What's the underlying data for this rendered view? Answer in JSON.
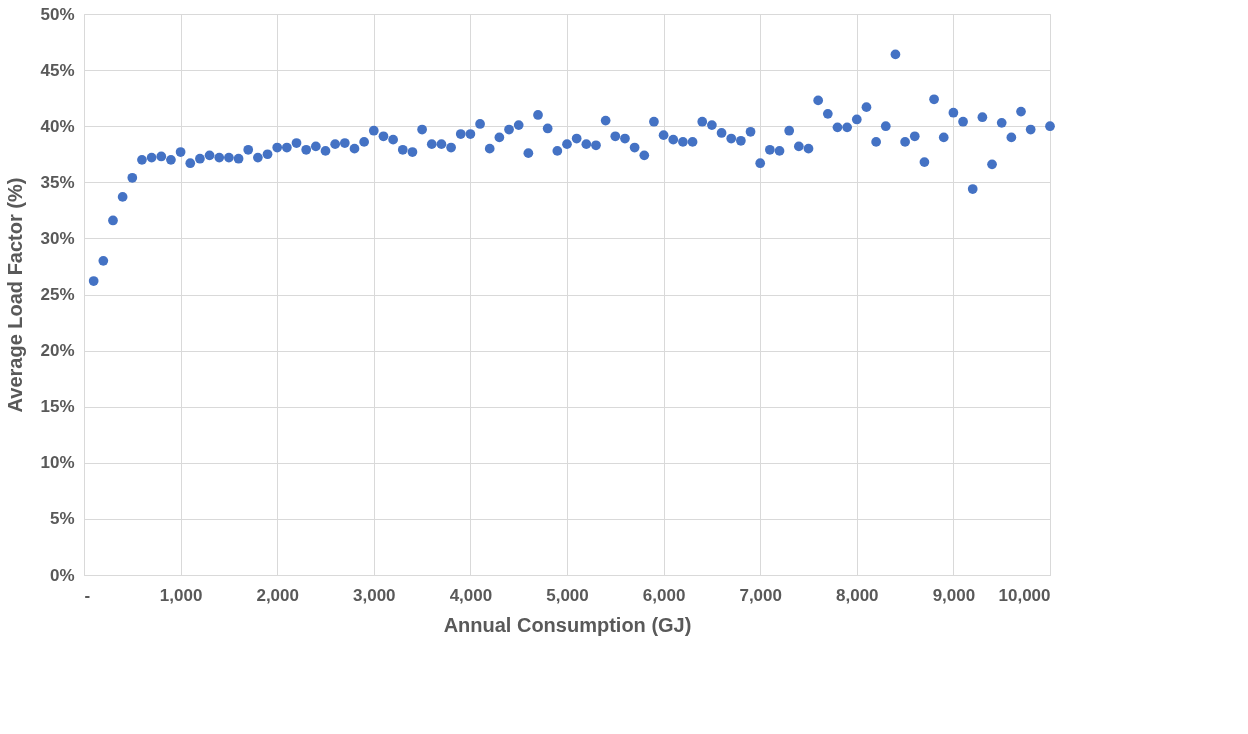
{
  "chart_data": {
    "type": "scatter",
    "xlabel": "Annual Consumption (GJ)",
    "ylabel": "Average Load Factor (%)",
    "x": [
      100,
      200,
      300,
      400,
      500,
      600,
      700,
      800,
      900,
      1000,
      1100,
      1200,
      1300,
      1400,
      1500,
      1600,
      1700,
      1800,
      1900,
      2000,
      2100,
      2200,
      2300,
      2400,
      2500,
      2600,
      2700,
      2800,
      2900,
      3000,
      3100,
      3200,
      3300,
      3400,
      3500,
      3600,
      3700,
      3800,
      3900,
      4000,
      4100,
      4200,
      4300,
      4400,
      4500,
      4600,
      4700,
      4800,
      4900,
      5000,
      5100,
      5200,
      5300,
      5400,
      5500,
      5600,
      5700,
      5800,
      5900,
      6000,
      6100,
      6200,
      6300,
      6400,
      6500,
      6600,
      6700,
      6800,
      6900,
      7000,
      7100,
      7200,
      7300,
      7400,
      7500,
      7600,
      7700,
      7800,
      7900,
      8000,
      8100,
      8200,
      8300,
      8400,
      8500,
      8600,
      8700,
      8800,
      8900,
      9000,
      9100,
      9200,
      9300,
      9400,
      9500,
      9600,
      9700,
      9800,
      10000
    ],
    "series": [
      {
        "color": "#4472c4",
        "values": [
          26.2,
          28.0,
          31.6,
          33.7,
          35.4,
          37.0,
          37.2,
          37.3,
          37.0,
          37.7,
          36.7,
          37.1,
          37.4,
          37.2,
          37.2,
          37.1,
          37.9,
          37.2,
          37.5,
          38.1,
          38.1,
          38.5,
          37.9,
          38.2,
          37.8,
          38.4,
          38.5,
          38.0,
          38.6,
          39.6,
          39.1,
          38.8,
          37.9,
          37.7,
          39.7,
          38.4,
          38.4,
          38.1,
          39.3,
          39.3,
          40.2,
          38.0,
          39.0,
          39.7,
          40.1,
          37.6,
          41.0,
          39.8,
          37.8,
          38.4,
          38.9,
          38.4,
          38.3,
          40.5,
          39.1,
          38.9,
          38.1,
          37.4,
          40.4,
          39.2,
          38.8,
          38.6,
          38.6,
          40.4,
          40.1,
          39.4,
          38.9,
          38.7,
          39.5,
          36.7,
          37.9,
          37.8,
          39.6,
          38.2,
          38.0,
          42.3,
          41.1,
          39.9,
          39.9,
          40.6,
          41.7,
          38.6,
          40.0,
          46.4,
          38.6,
          39.1,
          36.8,
          42.4,
          39.0,
          41.2,
          40.4,
          34.4,
          40.8,
          36.6,
          40.3,
          39.0,
          41.3,
          39.7,
          40.0
        ]
      }
    ],
    "xlim": [
      0,
      10000
    ],
    "xticks": [
      {
        "value": 0,
        "label": "-"
      },
      {
        "value": 1000,
        "label": "1,000"
      },
      {
        "value": 2000,
        "label": "2,000"
      },
      {
        "value": 3000,
        "label": "3,000"
      },
      {
        "value": 4000,
        "label": "4,000"
      },
      {
        "value": 5000,
        "label": "5,000"
      },
      {
        "value": 6000,
        "label": "6,000"
      },
      {
        "value": 7000,
        "label": "7,000"
      },
      {
        "value": 8000,
        "label": "8,000"
      },
      {
        "value": 9000,
        "label": "9,000"
      },
      {
        "value": 10000,
        "label": "10,000"
      }
    ],
    "ylim": [
      0,
      50
    ],
    "yticks": [
      {
        "value": 0,
        "label": "0%"
      },
      {
        "value": 5,
        "label": "5%"
      },
      {
        "value": 10,
        "label": "10%"
      },
      {
        "value": 15,
        "label": "15%"
      },
      {
        "value": 20,
        "label": "20%"
      },
      {
        "value": 25,
        "label": "25%"
      },
      {
        "value": 30,
        "label": "30%"
      },
      {
        "value": 35,
        "label": "35%"
      },
      {
        "value": 40,
        "label": "40%"
      },
      {
        "value": 45,
        "label": "45%"
      },
      {
        "value": 50,
        "label": "50%"
      }
    ],
    "grid": true,
    "marker": "circle"
  }
}
